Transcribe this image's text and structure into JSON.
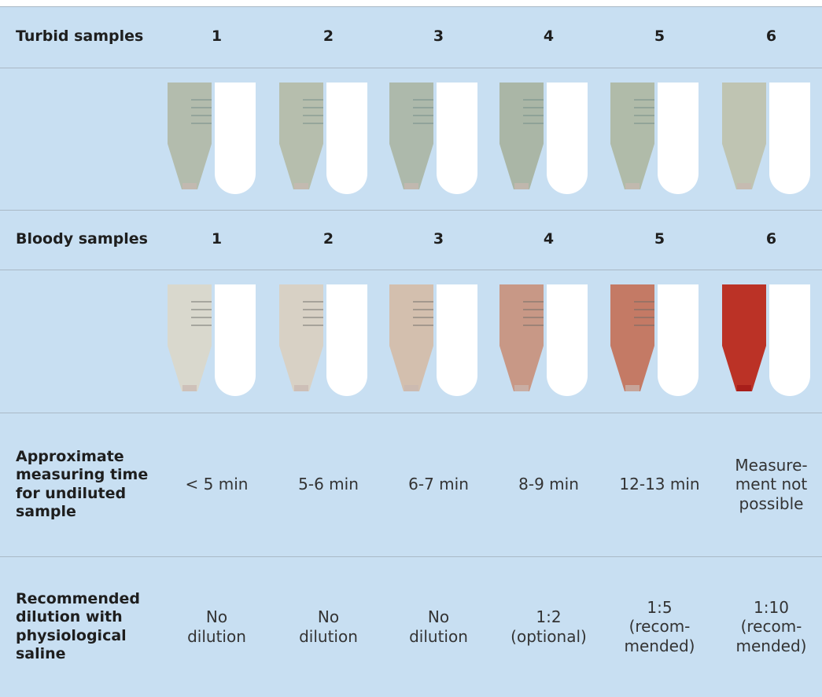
{
  "table": {
    "rows": [
      {
        "label": "Turbid samples",
        "cells": [
          "1",
          "2",
          "3",
          "4",
          "5",
          "6"
        ]
      },
      {
        "label": "Bloody samples",
        "cells": [
          "1",
          "2",
          "3",
          "4",
          "5",
          "6"
        ]
      },
      {
        "label": "Approximate\nmeasuring time\nfor undiluted\nsample",
        "cells": [
          "< 5 min",
          "5-6 min",
          "6-7 min",
          "8-9 min",
          "12-13 min",
          "Measure-\nment not\npossible"
        ]
      },
      {
        "label": "Recommended\ndilution with\nphysiological\nsaline",
        "cells": [
          "No\ndilution",
          "No\ndilution",
          "No\ndilution",
          "1:2\n(optional)",
          "1:5\n(recom-\nmended)",
          "1:10\n(recom-\nmended)"
        ]
      }
    ]
  }
}
